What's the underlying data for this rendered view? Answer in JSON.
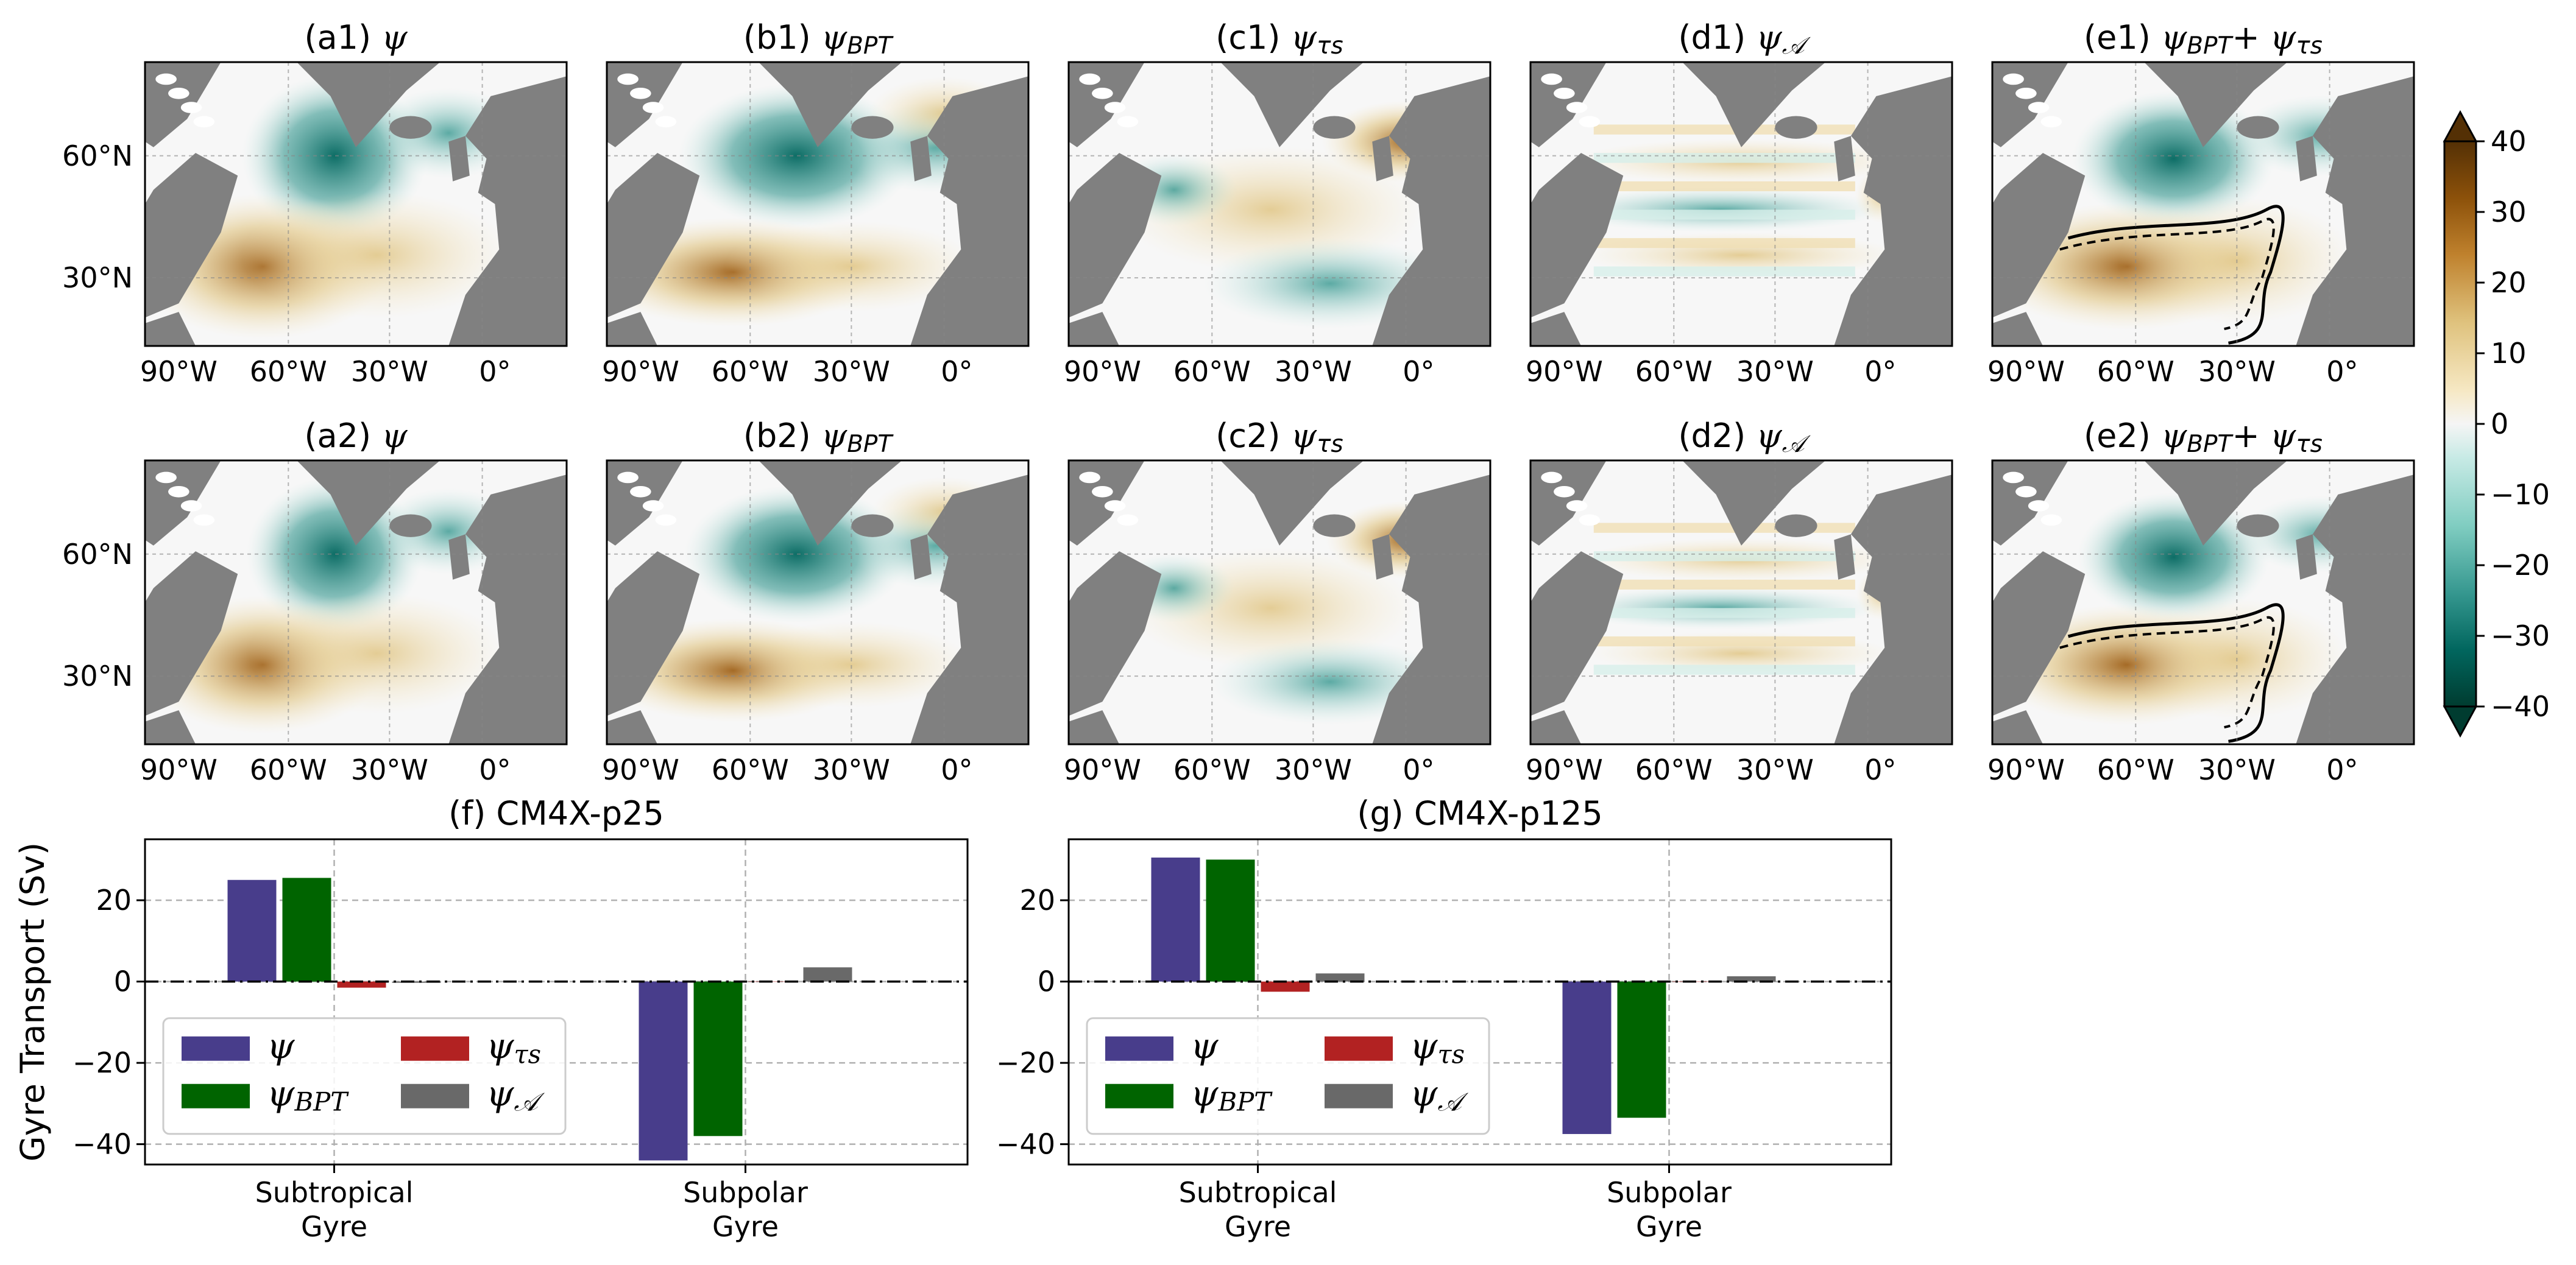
{
  "figure": {
    "map_rows": [
      {
        "panels": [
          {
            "title": "(a1) ψ"
          },
          {
            "title": "(b1) ψBPT"
          },
          {
            "title": "(c1) ψτs"
          },
          {
            "title": "(d1) ψ𝒜"
          },
          {
            "title": "(e1) ψBPT + ψτs"
          }
        ]
      },
      {
        "panels": [
          {
            "title": "(a2) ψ"
          },
          {
            "title": "(b2) ψBPT"
          },
          {
            "title": "(c2) ψτs"
          },
          {
            "title": "(d2) ψ𝒜"
          },
          {
            "title": "(e2) ψBPT + ψτs"
          }
        ]
      }
    ],
    "map_lon_ticks": [
      "90°W",
      "60°W",
      "30°W",
      "0°"
    ],
    "map_lat_ticks": [
      "60°N",
      "30°N"
    ],
    "colorbar": {
      "ticks": [
        "40",
        "30",
        "20",
        "10",
        "0",
        "−10",
        "−20",
        "−30",
        "−40"
      ],
      "colors": [
        "#543005",
        "#8c510a",
        "#bf812d",
        "#dfc27d",
        "#f6e8c3",
        "#f5f5f5",
        "#c7eae5",
        "#80cdc1",
        "#35978f",
        "#01665e",
        "#003c30"
      ]
    },
    "land_color": "#808080"
  },
  "chart_data": [
    {
      "type": "bar",
      "title": "(f) CM4X-p25",
      "ylabel": "Gyre Transport (Sv)",
      "categories": [
        "Subtropical\nGyre",
        "Subpolar\nGyre"
      ],
      "category_lines": [
        [
          "Subtropical",
          "Gyre"
        ],
        [
          "Subpolar",
          "Gyre"
        ]
      ],
      "ylim": [
        -45,
        35
      ],
      "yticks": [
        "20",
        "0",
        "−20",
        "−40"
      ],
      "grid": true,
      "legend_position": "lower-left",
      "series": [
        {
          "name": "ψ",
          "color": "#483d8b",
          "values": [
            25,
            -44
          ]
        },
        {
          "name": "ψBPT",
          "color": "#006400",
          "values": [
            25.5,
            -38
          ]
        },
        {
          "name": "ψτs",
          "color": "#b22222",
          "values": [
            -1.5,
            0
          ]
        },
        {
          "name": "ψ𝒜",
          "color": "#696969",
          "values": [
            -0.3,
            3.5
          ]
        }
      ]
    },
    {
      "type": "bar",
      "title": "(g) CM4X-p125",
      "ylabel": "",
      "categories": [
        "Subtropical\nGyre",
        "Subpolar\nGyre"
      ],
      "category_lines": [
        [
          "Subtropical",
          "Gyre"
        ],
        [
          "Subpolar",
          "Gyre"
        ]
      ],
      "ylim": [
        -45,
        35
      ],
      "yticks": [
        "20",
        "0",
        "−20",
        "−40"
      ],
      "grid": true,
      "legend_position": "lower-left",
      "series": [
        {
          "name": "ψ",
          "color": "#483d8b",
          "values": [
            30.5,
            -37.5
          ]
        },
        {
          "name": "ψBPT",
          "color": "#006400",
          "values": [
            30,
            -33.5
          ]
        },
        {
          "name": "ψτs",
          "color": "#b22222",
          "values": [
            -2.5,
            0
          ]
        },
        {
          "name": "ψ𝒜",
          "color": "#696969",
          "values": [
            2,
            1.3
          ]
        }
      ]
    }
  ]
}
